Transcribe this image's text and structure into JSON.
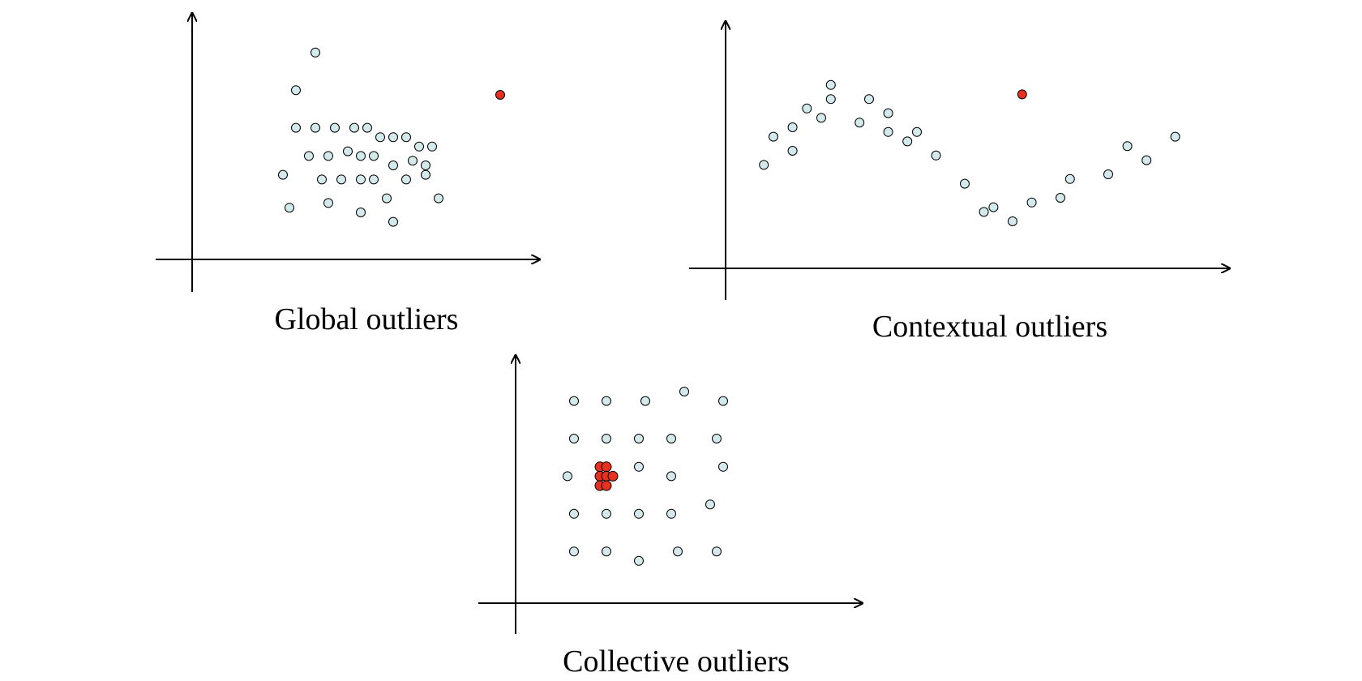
{
  "colors": {
    "normal_fill": "#d4e9ec",
    "outlier_fill": "#e8301f",
    "stroke": "#000000"
  },
  "panels": [
    {
      "id": "global",
      "caption": "Global outliers",
      "normal": [
        [
          0.32,
          0.72
        ],
        [
          0.38,
          0.88
        ],
        [
          0.32,
          0.56
        ],
        [
          0.38,
          0.56
        ],
        [
          0.44,
          0.56
        ],
        [
          0.5,
          0.56
        ],
        [
          0.54,
          0.56
        ],
        [
          0.58,
          0.52
        ],
        [
          0.62,
          0.52
        ],
        [
          0.66,
          0.52
        ],
        [
          0.7,
          0.48
        ],
        [
          0.74,
          0.48
        ],
        [
          0.36,
          0.44
        ],
        [
          0.42,
          0.44
        ],
        [
          0.48,
          0.46
        ],
        [
          0.52,
          0.44
        ],
        [
          0.56,
          0.44
        ],
        [
          0.62,
          0.4
        ],
        [
          0.68,
          0.42
        ],
        [
          0.72,
          0.4
        ],
        [
          0.28,
          0.36
        ],
        [
          0.4,
          0.34
        ],
        [
          0.46,
          0.34
        ],
        [
          0.52,
          0.34
        ],
        [
          0.56,
          0.34
        ],
        [
          0.66,
          0.34
        ],
        [
          0.72,
          0.36
        ],
        [
          0.76,
          0.26
        ],
        [
          0.3,
          0.22
        ],
        [
          0.42,
          0.24
        ],
        [
          0.52,
          0.2
        ],
        [
          0.6,
          0.26
        ],
        [
          0.62,
          0.16
        ]
      ],
      "outliers": [
        [
          0.95,
          0.7
        ]
      ]
    },
    {
      "id": "contextual",
      "caption": "Contextual outliers",
      "normal": [
        [
          0.08,
          0.44
        ],
        [
          0.1,
          0.56
        ],
        [
          0.14,
          0.5
        ],
        [
          0.14,
          0.6
        ],
        [
          0.17,
          0.68
        ],
        [
          0.2,
          0.64
        ],
        [
          0.22,
          0.72
        ],
        [
          0.22,
          0.78
        ],
        [
          0.28,
          0.62
        ],
        [
          0.3,
          0.72
        ],
        [
          0.34,
          0.66
        ],
        [
          0.34,
          0.58
        ],
        [
          0.38,
          0.54
        ],
        [
          0.4,
          0.58
        ],
        [
          0.44,
          0.48
        ],
        [
          0.5,
          0.36
        ],
        [
          0.54,
          0.24
        ],
        [
          0.56,
          0.26
        ],
        [
          0.6,
          0.2
        ],
        [
          0.64,
          0.28
        ],
        [
          0.7,
          0.3
        ],
        [
          0.72,
          0.38
        ],
        [
          0.8,
          0.4
        ],
        [
          0.84,
          0.52
        ],
        [
          0.88,
          0.46
        ],
        [
          0.94,
          0.56
        ]
      ],
      "outliers": [
        [
          0.62,
          0.74
        ]
      ]
    },
    {
      "id": "collective",
      "caption": "Collective outliers",
      "normal": [
        [
          0.18,
          0.86
        ],
        [
          0.28,
          0.86
        ],
        [
          0.4,
          0.86
        ],
        [
          0.52,
          0.9
        ],
        [
          0.64,
          0.86
        ],
        [
          0.18,
          0.7
        ],
        [
          0.28,
          0.7
        ],
        [
          0.38,
          0.7
        ],
        [
          0.48,
          0.7
        ],
        [
          0.62,
          0.7
        ],
        [
          0.16,
          0.54
        ],
        [
          0.38,
          0.58
        ],
        [
          0.48,
          0.54
        ],
        [
          0.64,
          0.58
        ],
        [
          0.18,
          0.38
        ],
        [
          0.28,
          0.38
        ],
        [
          0.38,
          0.38
        ],
        [
          0.48,
          0.38
        ],
        [
          0.6,
          0.42
        ],
        [
          0.18,
          0.22
        ],
        [
          0.28,
          0.22
        ],
        [
          0.38,
          0.18
        ],
        [
          0.5,
          0.22
        ],
        [
          0.62,
          0.22
        ]
      ],
      "outliers": [
        [
          0.26,
          0.58
        ],
        [
          0.28,
          0.58
        ],
        [
          0.26,
          0.54
        ],
        [
          0.28,
          0.54
        ],
        [
          0.3,
          0.54
        ],
        [
          0.26,
          0.5
        ],
        [
          0.28,
          0.5
        ]
      ]
    }
  ]
}
